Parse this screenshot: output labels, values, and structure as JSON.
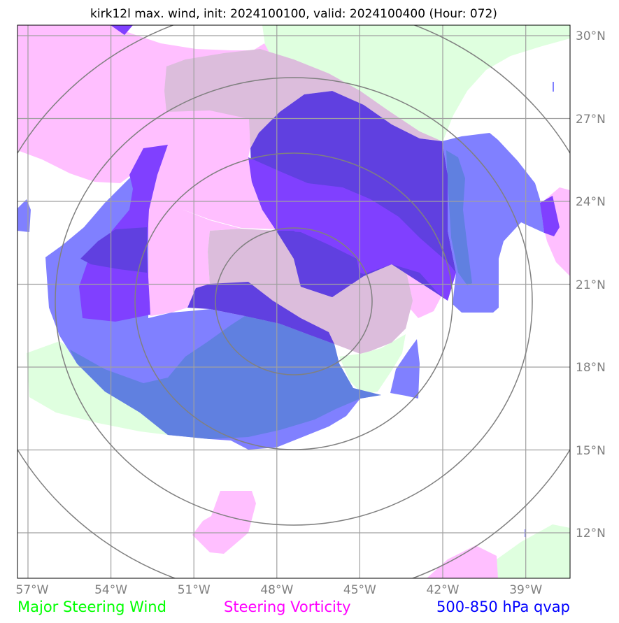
{
  "title": "kirk12l max. wind, init: 2024100100, valid: 2024100400 (Hour: 072)",
  "lat_labels": [
    "30°N",
    "27°N",
    "24°N",
    "21°N",
    "18°N",
    "15°N",
    "12°N"
  ],
  "lon_labels": [
    "57°W",
    "54°W",
    "51°W",
    "48°W",
    "45°W",
    "42°W",
    "39°W"
  ],
  "legend": [
    {
      "label": "Major Steering Wind",
      "color": "#00ff00"
    },
    {
      "label": "Steering Vorticity",
      "color": "#ff00ff"
    },
    {
      "label": "500-850 hPa qvap",
      "color": "#0000ff"
    }
  ],
  "fills": {
    "wind": "#dfffdf",
    "vorticity": "#ffbfff",
    "wind_vorticity": "#dcbddc",
    "qvap": "#8080ff",
    "qvap_strong": "#8040ff",
    "qvap_vorticity": "#6040e0",
    "qvap_wind": "#6080e0"
  }
}
